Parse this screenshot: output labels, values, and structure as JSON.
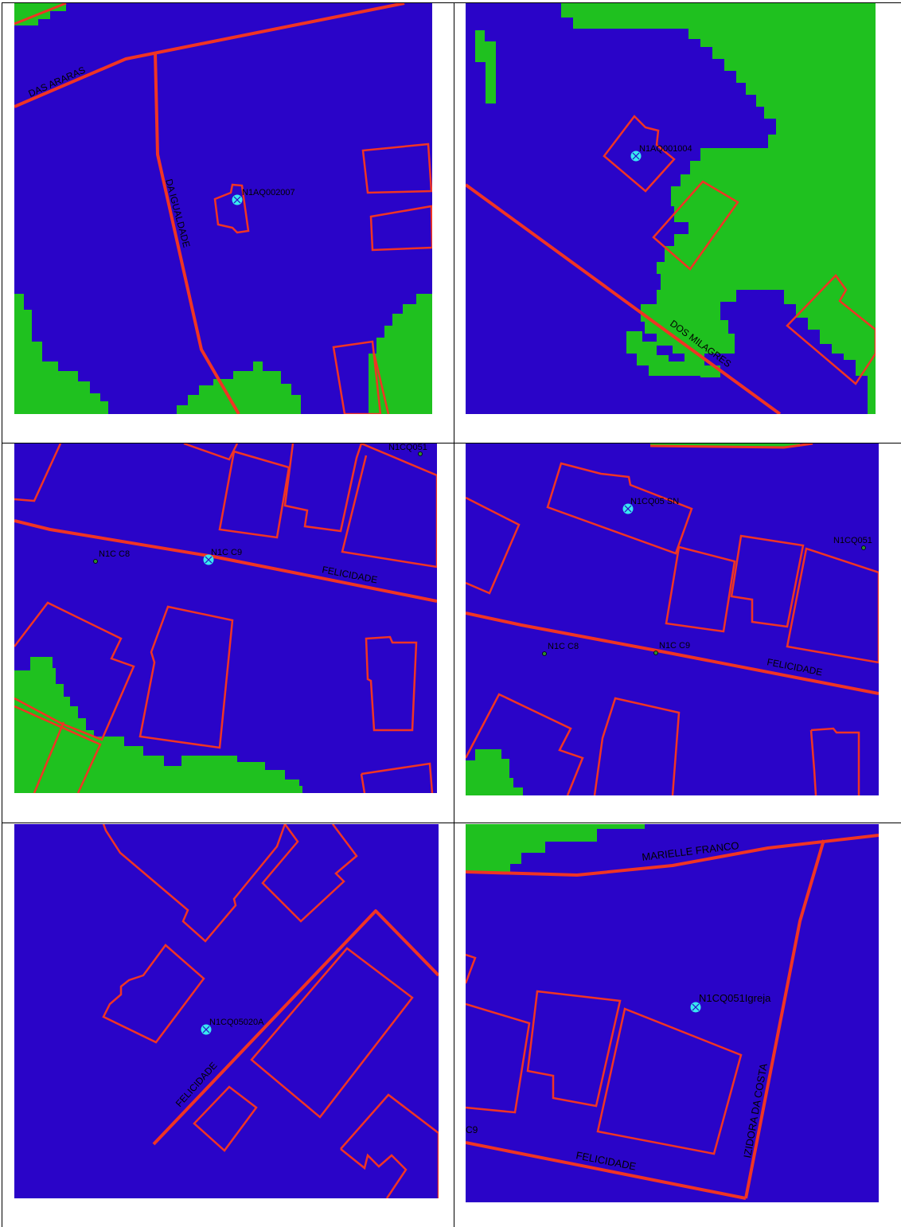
{
  "colors": {
    "background_blue": "#2A04C8",
    "vegetation_green": "#1FC11F",
    "outline_red": "#F03424",
    "point_cyan": "#38E8F0",
    "control_point_green": "#2E8B2E"
  },
  "panels": [
    {
      "id": "panel-1",
      "road_labels": [
        "DAS ARARAS",
        "DA IGUALDADE"
      ],
      "point_label": "N1AQ002007",
      "point_icon": "crosshair-point-icon"
    },
    {
      "id": "panel-2",
      "road_labels": [
        "DOS MILAGRES"
      ],
      "point_label": "N1AQ001004",
      "point_icon": "crosshair-point-icon"
    },
    {
      "id": "panel-3",
      "road_labels": [
        "FELICIDADE"
      ],
      "point_label": "N1C C9",
      "control_labels": [
        "N1C C8",
        "N1CQ051"
      ],
      "point_icon": "crosshair-point-icon"
    },
    {
      "id": "panel-4",
      "road_labels": [
        "FELICIDADE"
      ],
      "point_label": "N1CQ05 SN",
      "control_labels": [
        "N1C C8",
        "N1C C9",
        "N1CQ051"
      ],
      "point_icon": "crosshair-point-icon"
    },
    {
      "id": "panel-5",
      "road_labels": [
        "FELICIDADE"
      ],
      "point_label": "N1CQ05020A",
      "point_icon": "crosshair-point-icon"
    },
    {
      "id": "panel-6",
      "road_labels": [
        "MARIELLE FRANCO",
        "IZIDORA DA COSTA",
        "FELICIDADE"
      ],
      "point_label": "N1CQ051Igreja",
      "control_labels": [
        "C9"
      ],
      "point_icon": "crosshair-point-icon"
    }
  ]
}
